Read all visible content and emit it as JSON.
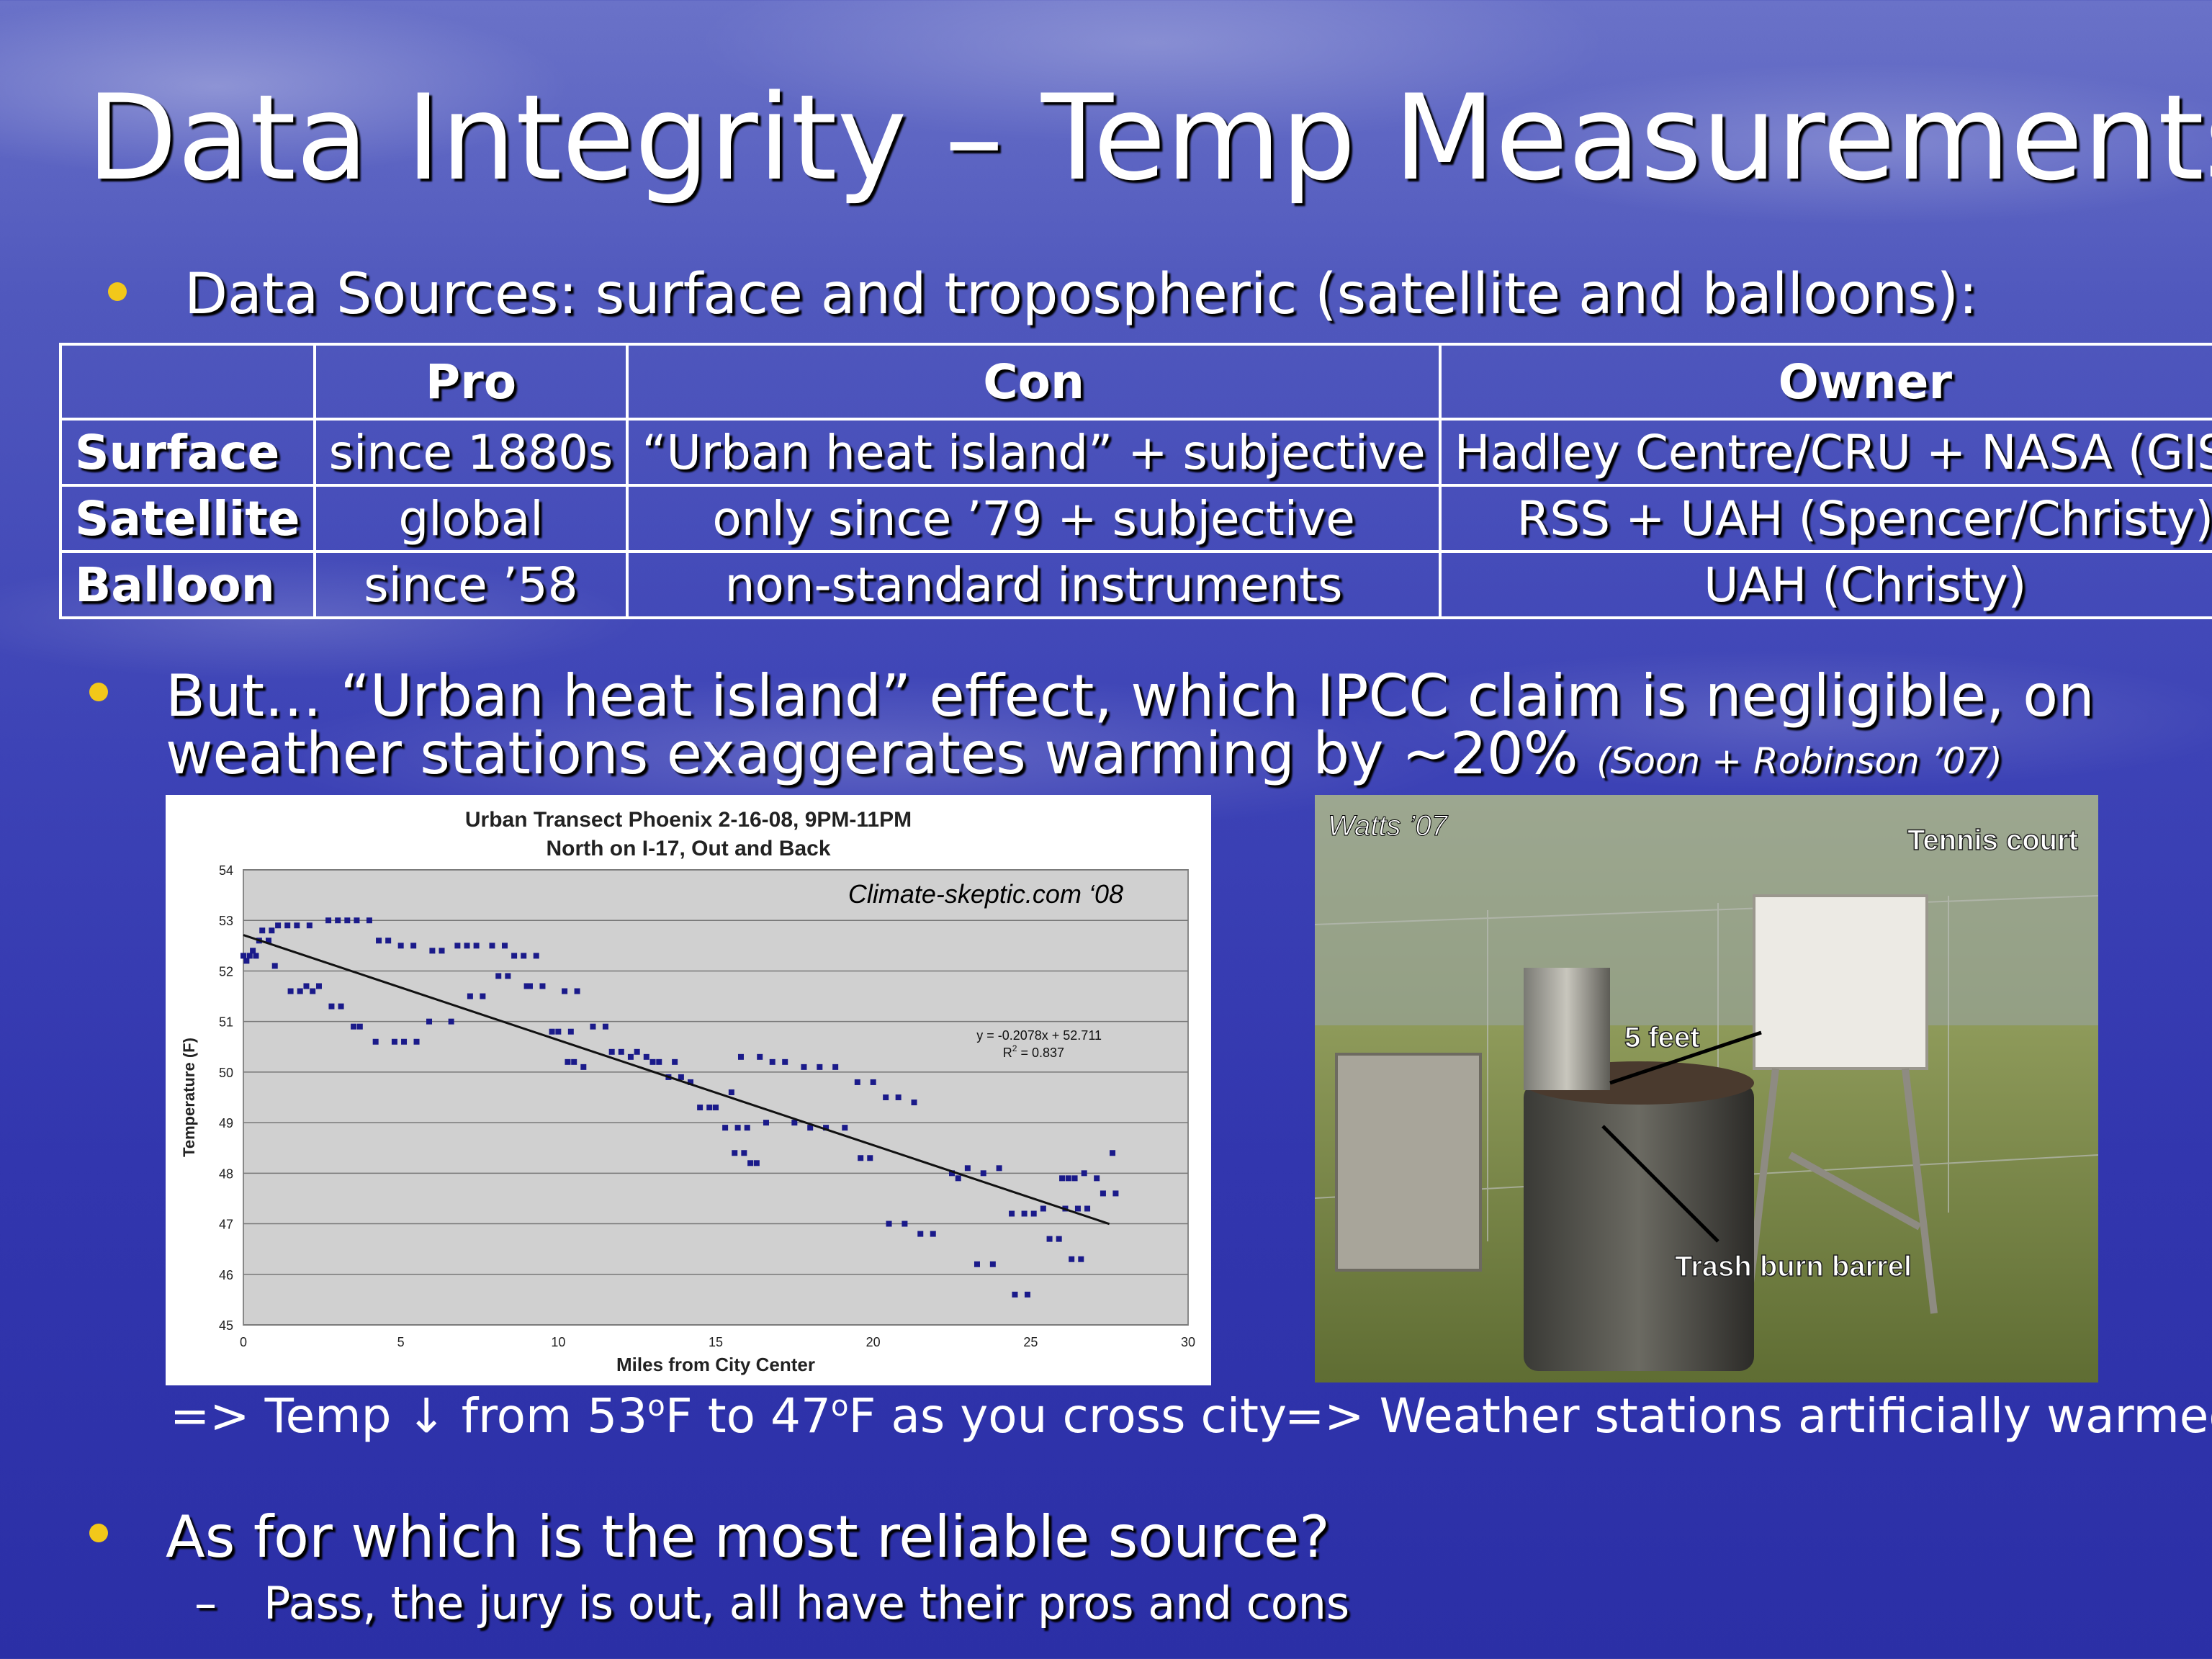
{
  "title": "Data Integrity – Temp Measurements",
  "bullet1": "Data Sources: surface and tropospheric (satellite and balloons):",
  "table": {
    "headers": [
      "",
      "Pro",
      "Con",
      "Owner"
    ],
    "rows": [
      [
        "Surface",
        "since 1880s",
        "“Urban heat island” + subjective",
        "Hadley Centre/CRU + NASA (GISS)"
      ],
      [
        "Satellite",
        "global",
        "only since ’79 + subjective",
        "RSS + UAH (Spencer/Christy)"
      ],
      [
        "Balloon",
        "since ’58",
        "non-standard instruments",
        "UAH (Christy)"
      ]
    ]
  },
  "bullet2_line1": "But… “Urban heat island” effect, which IPCC claim is negligible, on",
  "bullet2_line2": "weather stations exaggerates warming by ~20%",
  "bullet2_cite": "(Soon + Robinson ’07)",
  "chart_data": {
    "type": "scatter",
    "title": "Urban Transect Phoenix 2-16-08, 9PM-11PM",
    "subtitle": "North on I-17, Out and Back",
    "xlabel": "Miles from City Center",
    "ylabel": "Temperature (F)",
    "xlim": [
      0,
      30
    ],
    "ylim": [
      45,
      54
    ],
    "xticks": [
      0,
      5,
      10,
      15,
      20,
      25,
      30
    ],
    "yticks": [
      45,
      46,
      47,
      48,
      49,
      50,
      51,
      52,
      53,
      54
    ],
    "grid": true,
    "annotation": "Climate-skeptic.com ‘08",
    "equation": "y = -0.2078x + 52.711",
    "r2": "R",
    "r2_sup": "2",
    "r2_value": " = 0.837",
    "trendline": {
      "slope": -0.2078,
      "intercept": 52.711,
      "x": [
        0,
        27.5
      ]
    },
    "points": [
      [
        0.0,
        52.3
      ],
      [
        0.1,
        52.2
      ],
      [
        0.2,
        52.3
      ],
      [
        0.3,
        52.4
      ],
      [
        0.4,
        52.3
      ],
      [
        0.5,
        52.6
      ],
      [
        0.6,
        52.8
      ],
      [
        0.8,
        52.6
      ],
      [
        0.9,
        52.8
      ],
      [
        1.0,
        52.1
      ],
      [
        1.1,
        52.9
      ],
      [
        1.4,
        52.9
      ],
      [
        1.5,
        51.6
      ],
      [
        1.7,
        52.9
      ],
      [
        1.8,
        51.6
      ],
      [
        2.0,
        51.7
      ],
      [
        2.1,
        52.9
      ],
      [
        2.2,
        51.6
      ],
      [
        2.4,
        51.7
      ],
      [
        2.7,
        53.0
      ],
      [
        2.8,
        51.3
      ],
      [
        3.0,
        53.0
      ],
      [
        3.1,
        51.3
      ],
      [
        3.3,
        53.0
      ],
      [
        3.5,
        50.9
      ],
      [
        3.6,
        53.0
      ],
      [
        3.7,
        50.9
      ],
      [
        4.0,
        53.0
      ],
      [
        4.2,
        50.6
      ],
      [
        4.3,
        52.6
      ],
      [
        4.6,
        52.6
      ],
      [
        4.8,
        50.6
      ],
      [
        5.0,
        52.5
      ],
      [
        5.1,
        50.6
      ],
      [
        5.4,
        52.5
      ],
      [
        5.5,
        50.6
      ],
      [
        5.9,
        51.0
      ],
      [
        6.0,
        52.4
      ],
      [
        6.3,
        52.4
      ],
      [
        6.6,
        51.0
      ],
      [
        6.8,
        52.5
      ],
      [
        7.1,
        52.5
      ],
      [
        7.2,
        51.5
      ],
      [
        7.4,
        52.5
      ],
      [
        7.6,
        51.5
      ],
      [
        7.9,
        52.5
      ],
      [
        8.1,
        51.9
      ],
      [
        8.3,
        52.5
      ],
      [
        8.4,
        51.9
      ],
      [
        8.6,
        52.3
      ],
      [
        8.9,
        52.3
      ],
      [
        9.0,
        51.7
      ],
      [
        9.1,
        51.7
      ],
      [
        9.3,
        52.3
      ],
      [
        9.5,
        51.7
      ],
      [
        9.8,
        50.8
      ],
      [
        10.0,
        50.8
      ],
      [
        10.2,
        51.6
      ],
      [
        10.3,
        50.2
      ],
      [
        10.4,
        50.8
      ],
      [
        10.5,
        50.2
      ],
      [
        10.6,
        51.6
      ],
      [
        10.8,
        50.1
      ],
      [
        11.1,
        50.9
      ],
      [
        11.5,
        50.9
      ],
      [
        11.7,
        50.4
      ],
      [
        12.0,
        50.4
      ],
      [
        12.3,
        50.3
      ],
      [
        12.5,
        50.4
      ],
      [
        12.8,
        50.3
      ],
      [
        13.0,
        50.2
      ],
      [
        13.2,
        50.2
      ],
      [
        13.5,
        49.9
      ],
      [
        13.7,
        50.2
      ],
      [
        13.9,
        49.9
      ],
      [
        14.2,
        49.8
      ],
      [
        14.5,
        49.3
      ],
      [
        14.8,
        49.3
      ],
      [
        15.0,
        49.3
      ],
      [
        15.3,
        48.9
      ],
      [
        15.5,
        49.6
      ],
      [
        15.6,
        48.4
      ],
      [
        15.7,
        48.9
      ],
      [
        15.8,
        50.3
      ],
      [
        15.9,
        48.4
      ],
      [
        16.0,
        48.9
      ],
      [
        16.1,
        48.2
      ],
      [
        16.3,
        48.2
      ],
      [
        16.4,
        50.3
      ],
      [
        16.6,
        49.0
      ],
      [
        16.8,
        50.2
      ],
      [
        17.2,
        50.2
      ],
      [
        17.5,
        49.0
      ],
      [
        17.8,
        50.1
      ],
      [
        18.0,
        48.9
      ],
      [
        18.3,
        50.1
      ],
      [
        18.5,
        48.9
      ],
      [
        18.8,
        50.1
      ],
      [
        19.1,
        48.9
      ],
      [
        19.5,
        49.8
      ],
      [
        19.6,
        48.3
      ],
      [
        19.9,
        48.3
      ],
      [
        20.0,
        49.8
      ],
      [
        20.4,
        49.5
      ],
      [
        20.5,
        47.0
      ],
      [
        20.8,
        49.5
      ],
      [
        21.0,
        47.0
      ],
      [
        21.3,
        49.4
      ],
      [
        21.5,
        46.8
      ],
      [
        21.9,
        46.8
      ],
      [
        22.5,
        48.0
      ],
      [
        22.7,
        47.9
      ],
      [
        23.0,
        48.1
      ],
      [
        23.3,
        46.2
      ],
      [
        23.5,
        48.0
      ],
      [
        23.8,
        46.2
      ],
      [
        24.0,
        48.1
      ],
      [
        24.4,
        47.2
      ],
      [
        24.5,
        45.6
      ],
      [
        24.8,
        47.2
      ],
      [
        24.9,
        45.6
      ],
      [
        25.1,
        47.2
      ],
      [
        25.4,
        47.3
      ],
      [
        25.6,
        46.7
      ],
      [
        25.9,
        46.7
      ],
      [
        26.0,
        47.9
      ],
      [
        26.1,
        47.3
      ],
      [
        26.2,
        47.9
      ],
      [
        26.3,
        46.3
      ],
      [
        26.4,
        47.9
      ],
      [
        26.5,
        47.3
      ],
      [
        26.6,
        46.3
      ],
      [
        26.7,
        48.0
      ],
      [
        26.8,
        47.3
      ],
      [
        27.1,
        47.9
      ],
      [
        27.3,
        47.6
      ],
      [
        27.6,
        48.4
      ],
      [
        27.7,
        47.6
      ]
    ]
  },
  "photo": {
    "credit": "Watts ’07",
    "label_tennis": "Tennis court",
    "label_5feet": "5 feet",
    "label_barrel": "Trash burn barrel"
  },
  "caption_left": {
    "a": "=> Temp ↓ from 53",
    "sup1": "o",
    "b": "F to 47",
    "sup2": "o",
    "c": "F as you cross city"
  },
  "caption_right": "=> Weather stations artificially warmed",
  "bullet3": "As for which is the most reliable source?",
  "sub_dash": "–",
  "sub1": "Pass, the jury is out, all have their pros and cons",
  "colors": {
    "bullet": "#f2c81a",
    "background_top": "#6a72c8",
    "background_bottom": "#2b2fa6"
  }
}
